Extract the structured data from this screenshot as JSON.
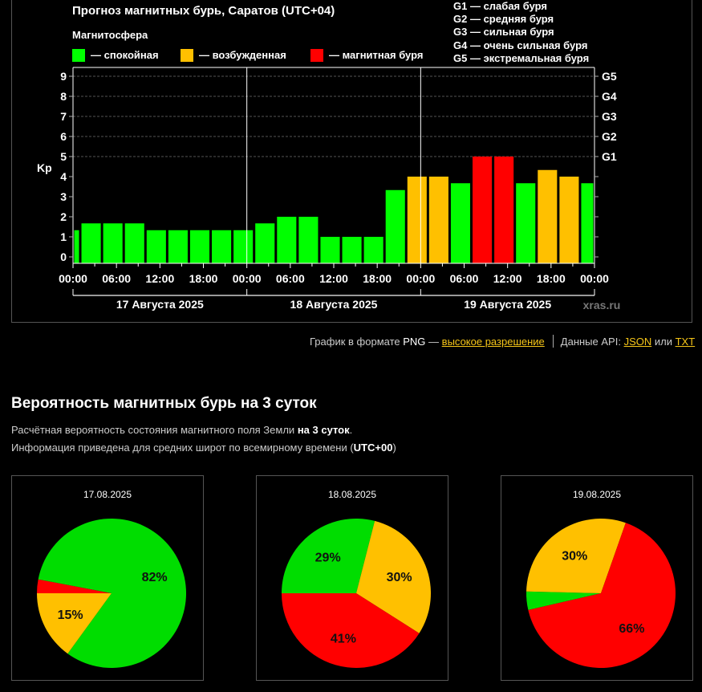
{
  "header": {
    "title": "Прогноз магнитных бурь, Саратов (UTC+04)",
    "subtitle": "Магнитосфера",
    "legend": [
      {
        "label": "— спокойная",
        "color": "#00ff00"
      },
      {
        "label": "— возбужденная",
        "color": "#ffc000"
      },
      {
        "label": "— магнитная буря",
        "color": "#ff0000"
      }
    ],
    "g_scale": [
      "G1 — слабая буря",
      "G2 — средняя буря",
      "G3 — сильная буря",
      "G4 — очень сильная буря",
      "G5 — экстремальная буря"
    ]
  },
  "chart_data": {
    "type": "bar",
    "title": "Прогноз магнитных бурь, Саратов (UTC+04)",
    "ylabel": "Kp",
    "ylim": [
      0,
      9
    ],
    "y_ticks": [
      "0",
      "1",
      "2",
      "3",
      "4",
      "5",
      "6",
      "7",
      "8",
      "9"
    ],
    "right_ticks": [
      {
        "kp": 5,
        "label": "G1"
      },
      {
        "kp": 6,
        "label": "G2"
      },
      {
        "kp": 7,
        "label": "G3"
      },
      {
        "kp": 8,
        "label": "G4"
      },
      {
        "kp": 9,
        "label": "G5"
      }
    ],
    "x_tick_labels": [
      "00:00",
      "06:00",
      "12:00",
      "18:00",
      "00:00",
      "06:00",
      "12:00",
      "18:00",
      "00:00",
      "06:00",
      "12:00",
      "18:00",
      "00:00"
    ],
    "day_labels": [
      "17 Августа 2025",
      "18 Августа 2025",
      "19 Августа 2025"
    ],
    "watermark": "xras.ru",
    "grid": true,
    "colors": {
      "quiet": "#00ff00",
      "active": "#ffc000",
      "storm": "#ff0000"
    },
    "bars": [
      {
        "start_h": 0,
        "end_h": 1,
        "kp": 1.33,
        "level": "quiet"
      },
      {
        "start_h": 1,
        "end_h": 4,
        "kp": 1.67,
        "level": "quiet"
      },
      {
        "start_h": 4,
        "end_h": 7,
        "kp": 1.67,
        "level": "quiet"
      },
      {
        "start_h": 7,
        "end_h": 10,
        "kp": 1.67,
        "level": "quiet"
      },
      {
        "start_h": 10,
        "end_h": 13,
        "kp": 1.33,
        "level": "quiet"
      },
      {
        "start_h": 13,
        "end_h": 16,
        "kp": 1.33,
        "level": "quiet"
      },
      {
        "start_h": 16,
        "end_h": 19,
        "kp": 1.33,
        "level": "quiet"
      },
      {
        "start_h": 19,
        "end_h": 22,
        "kp": 1.33,
        "level": "quiet"
      },
      {
        "start_h": 22,
        "end_h": 25,
        "kp": 1.33,
        "level": "quiet"
      },
      {
        "start_h": 25,
        "end_h": 28,
        "kp": 1.67,
        "level": "quiet"
      },
      {
        "start_h": 28,
        "end_h": 31,
        "kp": 2.0,
        "level": "quiet"
      },
      {
        "start_h": 31,
        "end_h": 34,
        "kp": 2.0,
        "level": "quiet"
      },
      {
        "start_h": 34,
        "end_h": 37,
        "kp": 1.0,
        "level": "quiet"
      },
      {
        "start_h": 37,
        "end_h": 40,
        "kp": 1.0,
        "level": "quiet"
      },
      {
        "start_h": 40,
        "end_h": 43,
        "kp": 1.0,
        "level": "quiet"
      },
      {
        "start_h": 43,
        "end_h": 46,
        "kp": 3.33,
        "level": "quiet"
      },
      {
        "start_h": 46,
        "end_h": 49,
        "kp": 4.0,
        "level": "active"
      },
      {
        "start_h": 49,
        "end_h": 52,
        "kp": 4.0,
        "level": "active"
      },
      {
        "start_h": 52,
        "end_h": 55,
        "kp": 3.67,
        "level": "quiet"
      },
      {
        "start_h": 55,
        "end_h": 58,
        "kp": 5.0,
        "level": "storm"
      },
      {
        "start_h": 58,
        "end_h": 61,
        "kp": 5.0,
        "level": "storm"
      },
      {
        "start_h": 61,
        "end_h": 64,
        "kp": 3.67,
        "level": "quiet"
      },
      {
        "start_h": 64,
        "end_h": 67,
        "kp": 4.33,
        "level": "active"
      },
      {
        "start_h": 67,
        "end_h": 70,
        "kp": 4.0,
        "level": "active"
      },
      {
        "start_h": 70,
        "end_h": 72,
        "kp": 3.67,
        "level": "quiet"
      }
    ],
    "pies": [
      {
        "date": "17.08.2025",
        "slices": [
          {
            "level": "quiet",
            "value": 82,
            "label": "82%"
          },
          {
            "level": "active",
            "value": 15,
            "label": "15%"
          },
          {
            "level": "storm",
            "value": 3,
            "label": ""
          }
        ]
      },
      {
        "date": "18.08.2025",
        "slices": [
          {
            "level": "quiet",
            "value": 29,
            "label": "29%"
          },
          {
            "level": "active",
            "value": 30,
            "label": "30%"
          },
          {
            "level": "storm",
            "value": 41,
            "label": "41%"
          }
        ]
      },
      {
        "date": "19.08.2025",
        "slices": [
          {
            "level": "quiet",
            "value": 4,
            "label": ""
          },
          {
            "level": "active",
            "value": 30,
            "label": "30%"
          },
          {
            "level": "storm",
            "value": 66,
            "label": "66%"
          }
        ]
      }
    ]
  },
  "links": {
    "png_text": "График в формате",
    "png_word": "PNG",
    "dash": "—",
    "hires_link": "высокое разрешение",
    "api_text": "Данные API:",
    "json_link": "JSON",
    "or_text": "или",
    "txt_link": "TXT"
  },
  "probability": {
    "heading": "Вероятность магнитных бурь на 3 суток",
    "line1_pre": "Расчётная вероятность состояния магнитного поля Земли",
    "line1_bold": "на 3 суток",
    "line1_post": ".",
    "line2_pre": "Информация приведена для средних широт по всемирному времени (",
    "line2_bold": "UTC+00",
    "line2_post": ")"
  }
}
